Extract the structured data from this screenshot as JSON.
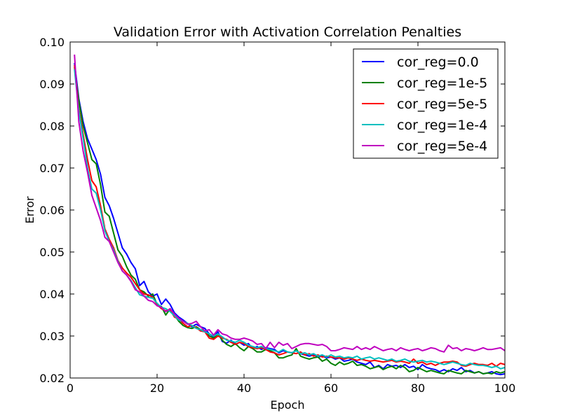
{
  "chart_data": {
    "type": "line",
    "title": "Validation Error with Activation Correlation Penalties",
    "xlabel": "Epoch",
    "ylabel": "Error",
    "xlim": [
      0,
      100
    ],
    "ylim": [
      0.02,
      0.1
    ],
    "xticks": [
      "0",
      "20",
      "40",
      "60",
      "80",
      "100"
    ],
    "yticks": [
      "0.02",
      "0.03",
      "0.04",
      "0.05",
      "0.06",
      "0.07",
      "0.08",
      "0.09",
      "0.10"
    ],
    "grid": false,
    "legend_position": "top-right",
    "x": [
      1,
      2,
      3,
      4,
      5,
      6,
      7,
      8,
      9,
      10,
      11,
      12,
      13,
      14,
      15,
      16,
      17,
      18,
      19,
      20,
      21,
      22,
      23,
      24,
      25,
      26,
      27,
      28,
      29,
      30,
      31,
      32,
      33,
      34,
      35,
      36,
      37,
      38,
      39,
      40,
      41,
      42,
      43,
      44,
      45,
      46,
      47,
      48,
      49,
      50,
      51,
      52,
      53,
      54,
      55,
      56,
      57,
      58,
      59,
      60,
      61,
      62,
      63,
      64,
      65,
      66,
      67,
      68,
      69,
      70,
      71,
      72,
      73,
      74,
      75,
      76,
      77,
      78,
      79,
      80,
      81,
      82,
      83,
      84,
      85,
      86,
      87,
      88,
      89,
      90,
      91,
      92,
      93,
      94,
      95,
      96,
      97,
      98,
      99,
      100
    ],
    "series": [
      {
        "name": "cor_reg=0.0",
        "color": "#0000ff",
        "values": [
          0.095,
          0.0865,
          0.081,
          0.077,
          0.0745,
          0.072,
          0.0685,
          0.063,
          0.061,
          0.058,
          0.0545,
          0.051,
          0.0495,
          0.0475,
          0.046,
          0.042,
          0.043,
          0.0405,
          0.0395,
          0.04,
          0.0375,
          0.0388,
          0.0375,
          0.0355,
          0.0345,
          0.0338,
          0.033,
          0.0322,
          0.0328,
          0.0322,
          0.0318,
          0.0305,
          0.0298,
          0.031,
          0.0287,
          0.0283,
          0.029,
          0.028,
          0.0285,
          0.0278,
          0.0282,
          0.027,
          0.0275,
          0.0268,
          0.0272,
          0.027,
          0.0268,
          0.026,
          0.0265,
          0.0262,
          0.026,
          0.0265,
          0.0258,
          0.0255,
          0.0252,
          0.0255,
          0.025,
          0.0252,
          0.0248,
          0.025,
          0.0245,
          0.0248,
          0.024,
          0.0242,
          0.0245,
          0.0238,
          0.0235,
          0.0232,
          0.0238,
          0.0225,
          0.023,
          0.0222,
          0.0232,
          0.0228,
          0.023,
          0.0225,
          0.0232,
          0.0225,
          0.0228,
          0.022,
          0.0232,
          0.0225,
          0.0222,
          0.022,
          0.0215,
          0.022,
          0.0215,
          0.0222,
          0.0218,
          0.0225,
          0.0215,
          0.0218,
          0.0212,
          0.0215,
          0.021,
          0.0212,
          0.0215,
          0.021,
          0.0208,
          0.021
        ]
      },
      {
        "name": "cor_reg=1e-5",
        "color": "#008000",
        "values": [
          0.094,
          0.086,
          0.08,
          0.076,
          0.072,
          0.071,
          0.066,
          0.0595,
          0.0585,
          0.0545,
          0.0505,
          0.049,
          0.0465,
          0.0445,
          0.0435,
          0.041,
          0.0405,
          0.0395,
          0.04,
          0.0375,
          0.037,
          0.035,
          0.0365,
          0.035,
          0.0335,
          0.0325,
          0.032,
          0.0318,
          0.0322,
          0.0315,
          0.0312,
          0.03,
          0.0295,
          0.0305,
          0.029,
          0.028,
          0.0275,
          0.0282,
          0.0272,
          0.0265,
          0.0275,
          0.027,
          0.0262,
          0.0262,
          0.0268,
          0.0265,
          0.026,
          0.0248,
          0.0248,
          0.0252,
          0.0255,
          0.027,
          0.0252,
          0.0248,
          0.0245,
          0.0248,
          0.025,
          0.024,
          0.0245,
          0.0235,
          0.023,
          0.0238,
          0.0232,
          0.0235,
          0.024,
          0.023,
          0.0232,
          0.0228,
          0.0222,
          0.0225,
          0.0228,
          0.022,
          0.0225,
          0.0228,
          0.0222,
          0.023,
          0.0225,
          0.0215,
          0.0218,
          0.0225,
          0.022,
          0.0215,
          0.0218,
          0.0215,
          0.0212,
          0.021,
          0.0218,
          0.0215,
          0.0212,
          0.021,
          0.0218,
          0.0215,
          0.0212,
          0.0215,
          0.021,
          0.0212,
          0.021,
          0.0215,
          0.0212,
          0.0215
        ]
      },
      {
        "name": "cor_reg=5e-5",
        "color": "#ff0000",
        "values": [
          0.0945,
          0.084,
          0.078,
          0.072,
          0.067,
          0.0655,
          0.061,
          0.0555,
          0.053,
          0.051,
          0.048,
          0.0462,
          0.045,
          0.044,
          0.0425,
          0.041,
          0.04,
          0.0398,
          0.0392,
          0.0375,
          0.0365,
          0.036,
          0.0362,
          0.0345,
          0.034,
          0.033,
          0.0322,
          0.0325,
          0.032,
          0.0312,
          0.031,
          0.0295,
          0.0292,
          0.03,
          0.0295,
          0.0292,
          0.0285,
          0.028,
          0.0285,
          0.0282,
          0.0275,
          0.0272,
          0.027,
          0.0272,
          0.0268,
          0.0262,
          0.026,
          0.0255,
          0.0258,
          0.0262,
          0.026,
          0.0258,
          0.0262,
          0.0255,
          0.0258,
          0.0252,
          0.0255,
          0.025,
          0.0252,
          0.025,
          0.0248,
          0.0248,
          0.0245,
          0.0248,
          0.0245,
          0.0242,
          0.0245,
          0.0242,
          0.024,
          0.0242,
          0.024,
          0.0238,
          0.024,
          0.0242,
          0.0238,
          0.024,
          0.0238,
          0.0235,
          0.0245,
          0.0235,
          0.0238,
          0.0232,
          0.0235,
          0.023,
          0.0235,
          0.0238,
          0.0238,
          0.024,
          0.0238,
          0.023,
          0.0228,
          0.0232,
          0.0235,
          0.0232,
          0.0232,
          0.023,
          0.0235,
          0.0228,
          0.0235,
          0.0232
        ]
      },
      {
        "name": "cor_reg=1e-4",
        "color": "#00bfbf",
        "values": [
          0.0935,
          0.0835,
          0.077,
          0.07,
          0.065,
          0.064,
          0.06,
          0.055,
          0.0525,
          0.0505,
          0.0478,
          0.0455,
          0.0445,
          0.0432,
          0.0415,
          0.0398,
          0.0395,
          0.0392,
          0.039,
          0.0378,
          0.0368,
          0.0365,
          0.0358,
          0.0348,
          0.0338,
          0.0335,
          0.033,
          0.0325,
          0.0318,
          0.0315,
          0.031,
          0.0305,
          0.03,
          0.0305,
          0.0298,
          0.029,
          0.0288,
          0.0285,
          0.029,
          0.0285,
          0.0278,
          0.0275,
          0.0272,
          0.0275,
          0.027,
          0.0268,
          0.0265,
          0.0262,
          0.0268,
          0.0262,
          0.026,
          0.0265,
          0.0258,
          0.026,
          0.0255,
          0.0258,
          0.0252,
          0.0255,
          0.025,
          0.0255,
          0.025,
          0.0252,
          0.0248,
          0.025,
          0.0248,
          0.0252,
          0.0245,
          0.0248,
          0.025,
          0.0245,
          0.0248,
          0.0245,
          0.0242,
          0.0245,
          0.024,
          0.0242,
          0.0245,
          0.024,
          0.0238,
          0.024,
          0.0242,
          0.0238,
          0.024,
          0.0238,
          0.0235,
          0.0232,
          0.0235,
          0.0238,
          0.0235,
          0.0232,
          0.023,
          0.0235,
          0.0232,
          0.023,
          0.023,
          0.0228,
          0.0225,
          0.0228,
          0.0222,
          0.0225
        ]
      },
      {
        "name": "cor_reg=5e-4",
        "color": "#bf00bf",
        "values": [
          0.097,
          0.081,
          0.074,
          0.069,
          0.0635,
          0.0605,
          0.0575,
          0.0535,
          0.0525,
          0.05,
          0.0475,
          0.0455,
          0.0445,
          0.043,
          0.041,
          0.0405,
          0.0395,
          0.0385,
          0.0382,
          0.0372,
          0.0368,
          0.0358,
          0.0365,
          0.0352,
          0.0342,
          0.0335,
          0.0328,
          0.033,
          0.0335,
          0.0322,
          0.0312,
          0.0315,
          0.0302,
          0.0315,
          0.0305,
          0.0302,
          0.0295,
          0.0292,
          0.0292,
          0.0295,
          0.0292,
          0.0288,
          0.028,
          0.0282,
          0.027,
          0.0285,
          0.0272,
          0.0285,
          0.0278,
          0.0282,
          0.027,
          0.0275,
          0.028,
          0.0282,
          0.0282,
          0.028,
          0.0278,
          0.028,
          0.0275,
          0.0265,
          0.0265,
          0.0268,
          0.0272,
          0.027,
          0.0268,
          0.0275,
          0.0268,
          0.0272,
          0.0268,
          0.0275,
          0.027,
          0.0265,
          0.0268,
          0.027,
          0.0265,
          0.0272,
          0.0268,
          0.0265,
          0.0268,
          0.027,
          0.0265,
          0.0268,
          0.0272,
          0.027,
          0.0265,
          0.0262,
          0.0278,
          0.027,
          0.0272,
          0.0265,
          0.027,
          0.0268,
          0.0265,
          0.0268,
          0.0272,
          0.0268,
          0.0268,
          0.027,
          0.0272,
          0.0265
        ]
      }
    ]
  }
}
